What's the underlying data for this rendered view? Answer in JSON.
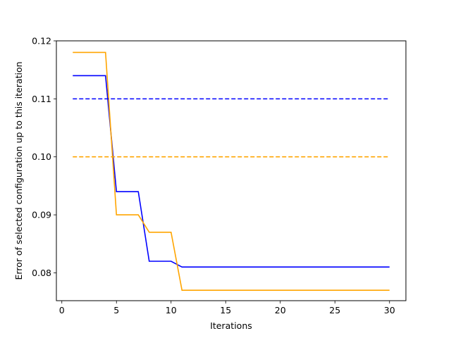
{
  "chart_data": {
    "type": "line",
    "title": "",
    "xlabel": "Iterations",
    "ylabel": "Error of selected configuration up to this iteration",
    "xlim": [
      -0.5,
      31.5
    ],
    "ylim": [
      0.0752,
      0.12
    ],
    "xticks": [
      0,
      5,
      10,
      15,
      20,
      25,
      30
    ],
    "yticks": [
      0.08,
      0.09,
      0.1,
      0.11,
      0.12
    ],
    "xtick_labels": [
      "0",
      "5",
      "10",
      "15",
      "20",
      "25",
      "30"
    ],
    "ytick_labels": [
      "0.08",
      "0.09",
      "0.10",
      "0.11",
      "0.12"
    ],
    "grid": false,
    "legend": "none",
    "series": [
      {
        "color": "#0000ff",
        "style": "solid",
        "x": [
          1,
          2,
          3,
          4,
          5,
          6,
          7,
          8,
          9,
          10,
          11,
          12,
          13,
          14,
          15,
          16,
          17,
          18,
          19,
          20,
          21,
          22,
          23,
          24,
          25,
          26,
          27,
          28,
          29,
          30
        ],
        "y": [
          0.114,
          0.114,
          0.114,
          0.114,
          0.094,
          0.094,
          0.094,
          0.082,
          0.082,
          0.082,
          0.081,
          0.081,
          0.081,
          0.081,
          0.081,
          0.081,
          0.081,
          0.081,
          0.081,
          0.081,
          0.081,
          0.081,
          0.081,
          0.081,
          0.081,
          0.081,
          0.081,
          0.081,
          0.081,
          0.081
        ]
      },
      {
        "color": "#ffa500",
        "style": "solid",
        "x": [
          1,
          2,
          3,
          4,
          5,
          6,
          7,
          8,
          9,
          10,
          11,
          12,
          13,
          14,
          15,
          16,
          17,
          18,
          19,
          20,
          21,
          22,
          23,
          24,
          25,
          26,
          27,
          28,
          29,
          30
        ],
        "y": [
          0.118,
          0.118,
          0.118,
          0.118,
          0.09,
          0.09,
          0.09,
          0.087,
          0.087,
          0.087,
          0.077,
          0.077,
          0.077,
          0.077,
          0.077,
          0.077,
          0.077,
          0.077,
          0.077,
          0.077,
          0.077,
          0.077,
          0.077,
          0.077,
          0.077,
          0.077,
          0.077,
          0.077,
          0.077,
          0.077
        ]
      },
      {
        "color": "#0000ff",
        "style": "dashed",
        "x": [
          1,
          30
        ],
        "y": [
          0.11,
          0.11
        ]
      },
      {
        "color": "#ffa500",
        "style": "dashed",
        "x": [
          1,
          30
        ],
        "y": [
          0.1,
          0.1
        ]
      }
    ]
  }
}
